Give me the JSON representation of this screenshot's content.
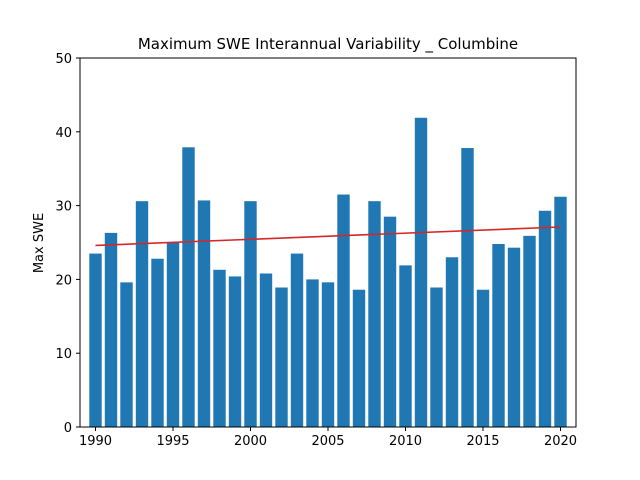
{
  "chart_data": {
    "type": "bar",
    "title": "Maximum SWE Interannual Variability _ Columbine",
    "xlabel": "",
    "ylabel": "Max SWE",
    "x": [
      1990,
      1991,
      1992,
      1993,
      1994,
      1995,
      1996,
      1997,
      1998,
      1999,
      2000,
      2001,
      2002,
      2003,
      2004,
      2005,
      2006,
      2007,
      2008,
      2009,
      2010,
      2011,
      2012,
      2013,
      2014,
      2015,
      2016,
      2017,
      2018,
      2019,
      2020
    ],
    "values": [
      23.5,
      26.3,
      19.6,
      30.6,
      22.8,
      25.0,
      37.9,
      30.7,
      21.3,
      20.4,
      30.6,
      20.8,
      18.9,
      23.5,
      20.0,
      19.6,
      31.5,
      18.6,
      30.6,
      28.5,
      21.9,
      41.9,
      18.9,
      23.0,
      37.8,
      18.6,
      24.8,
      24.3,
      25.9,
      29.3,
      31.2
    ],
    "trendline": {
      "x": [
        1990,
        2020
      ],
      "y": [
        24.6,
        27.1
      ],
      "color": "#d62728"
    },
    "bar_color": "#1f77b4",
    "xlim": [
      1989,
      2021
    ],
    "ylim": [
      0,
      50
    ],
    "xticks": [
      1990,
      1995,
      2000,
      2005,
      2010,
      2015,
      2020
    ],
    "yticks": [
      0,
      10,
      20,
      30,
      40,
      50
    ],
    "grid": false,
    "legend": "none"
  }
}
